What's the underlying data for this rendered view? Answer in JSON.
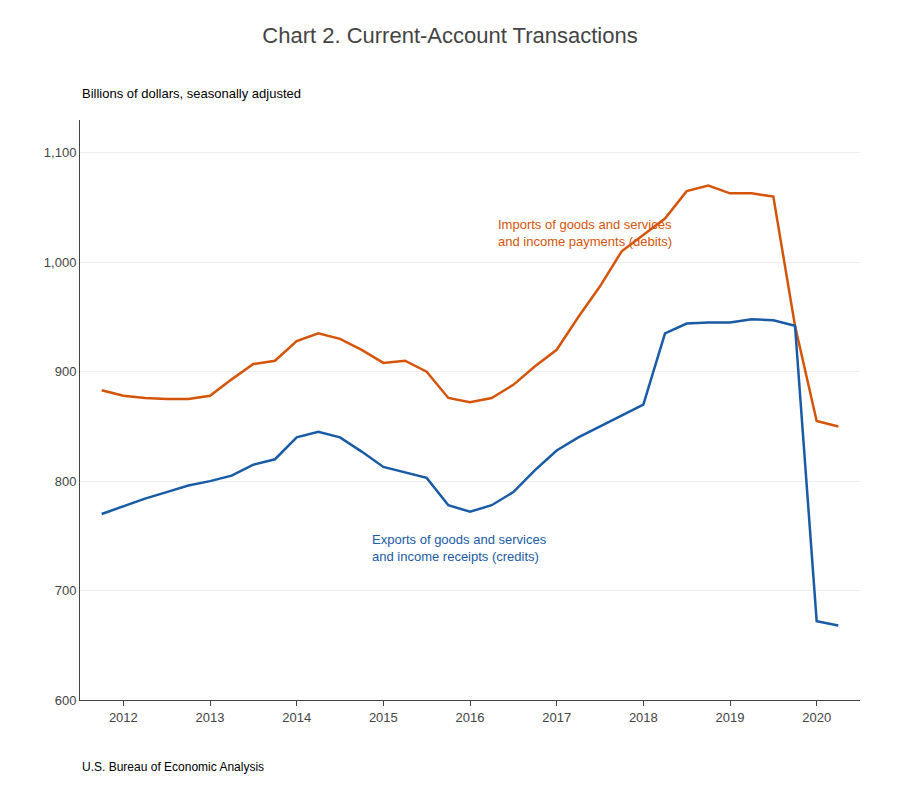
{
  "chart_data": {
    "type": "line",
    "title": "Chart 2. Current-Account Transactions",
    "subtitle": "Billions of dollars, seasonally adjusted",
    "footer": "U.S. Bureau of Economic Analysis",
    "x": [
      2011.75,
      2012.0,
      2012.25,
      2012.5,
      2012.75,
      2013.0,
      2013.25,
      2013.5,
      2013.75,
      2014.0,
      2014.25,
      2014.5,
      2014.75,
      2015.0,
      2015.25,
      2015.5,
      2015.75,
      2016.0,
      2016.25,
      2016.5,
      2016.75,
      2017.0,
      2017.25,
      2017.5,
      2017.75,
      2018.0,
      2018.25,
      2018.5,
      2018.75,
      2019.0,
      2019.25,
      2019.5,
      2019.75,
      2020.0,
      2020.25
    ],
    "series": [
      {
        "color": "#d4550a",
        "values": [
          883,
          878,
          876,
          875,
          875,
          878,
          893,
          907,
          910,
          928,
          935,
          930,
          920,
          908,
          910,
          900,
          876,
          872,
          876,
          888,
          905,
          920,
          950,
          978,
          1010,
          1025,
          1040,
          1065,
          1070,
          1063,
          1063,
          1060,
          942,
          855,
          850
        ]
      },
      {
        "color": "#1a5ba6",
        "values": [
          770,
          777,
          784,
          790,
          796,
          800,
          805,
          815,
          820,
          840,
          845,
          840,
          827,
          813,
          808,
          803,
          778,
          772,
          778,
          790,
          810,
          828,
          840,
          850,
          860,
          870,
          935,
          944,
          945,
          945,
          948,
          947,
          942,
          672,
          668
        ]
      }
    ],
    "annotations": [
      {
        "text": "Imports of goods and services\nand income payments (debits)",
        "x": 2016.3,
        "y": 1010,
        "color": "#d4550a"
      },
      {
        "text": "Exports of goods and services\nand income receipts (credits)",
        "x": 2014.85,
        "y": 755,
        "color": "#1a5ba6"
      }
    ],
    "xlim": [
      2011.5,
      2020.5
    ],
    "xticks": [
      2012,
      2013,
      2014,
      2015,
      2016,
      2017,
      2018,
      2019,
      2020
    ],
    "ylim": [
      600,
      1130
    ],
    "yticks": [
      600,
      700,
      800,
      900,
      {
        "value": 1000,
        "label": "1,000"
      },
      {
        "value": 1100,
        "label": "1,100"
      }
    ],
    "grid": "y"
  }
}
